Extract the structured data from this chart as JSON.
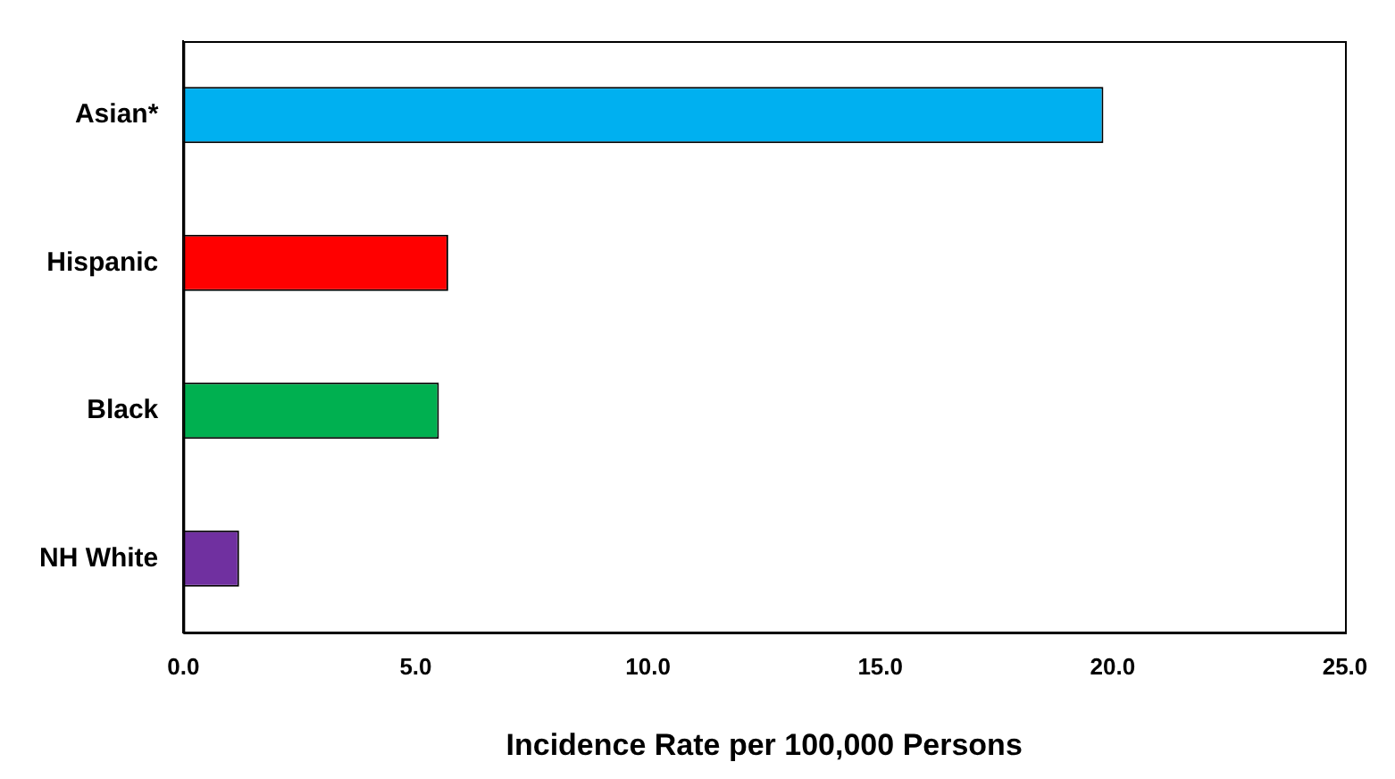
{
  "chart_data": {
    "type": "bar",
    "orientation": "horizontal",
    "xlabel": "Incidence Rate per 100,000 Persons",
    "categories": [
      "Asian*",
      "Hispanic",
      "Black",
      "NH White"
    ],
    "values": [
      19.8,
      5.7,
      5.5,
      1.2
    ],
    "colors": [
      "#00b0f0",
      "#ff0000",
      "#00b050",
      "#7030a0"
    ],
    "xlim": [
      0,
      25
    ],
    "xticks": [
      {
        "value": 0,
        "label": "0.0"
      },
      {
        "value": 5,
        "label": "5.0"
      },
      {
        "value": 10,
        "label": "10.0"
      },
      {
        "value": 15,
        "label": "15.0"
      },
      {
        "value": 20,
        "label": "20.0"
      },
      {
        "value": 25,
        "label": "25.0"
      }
    ],
    "grid": false,
    "legend": false
  }
}
